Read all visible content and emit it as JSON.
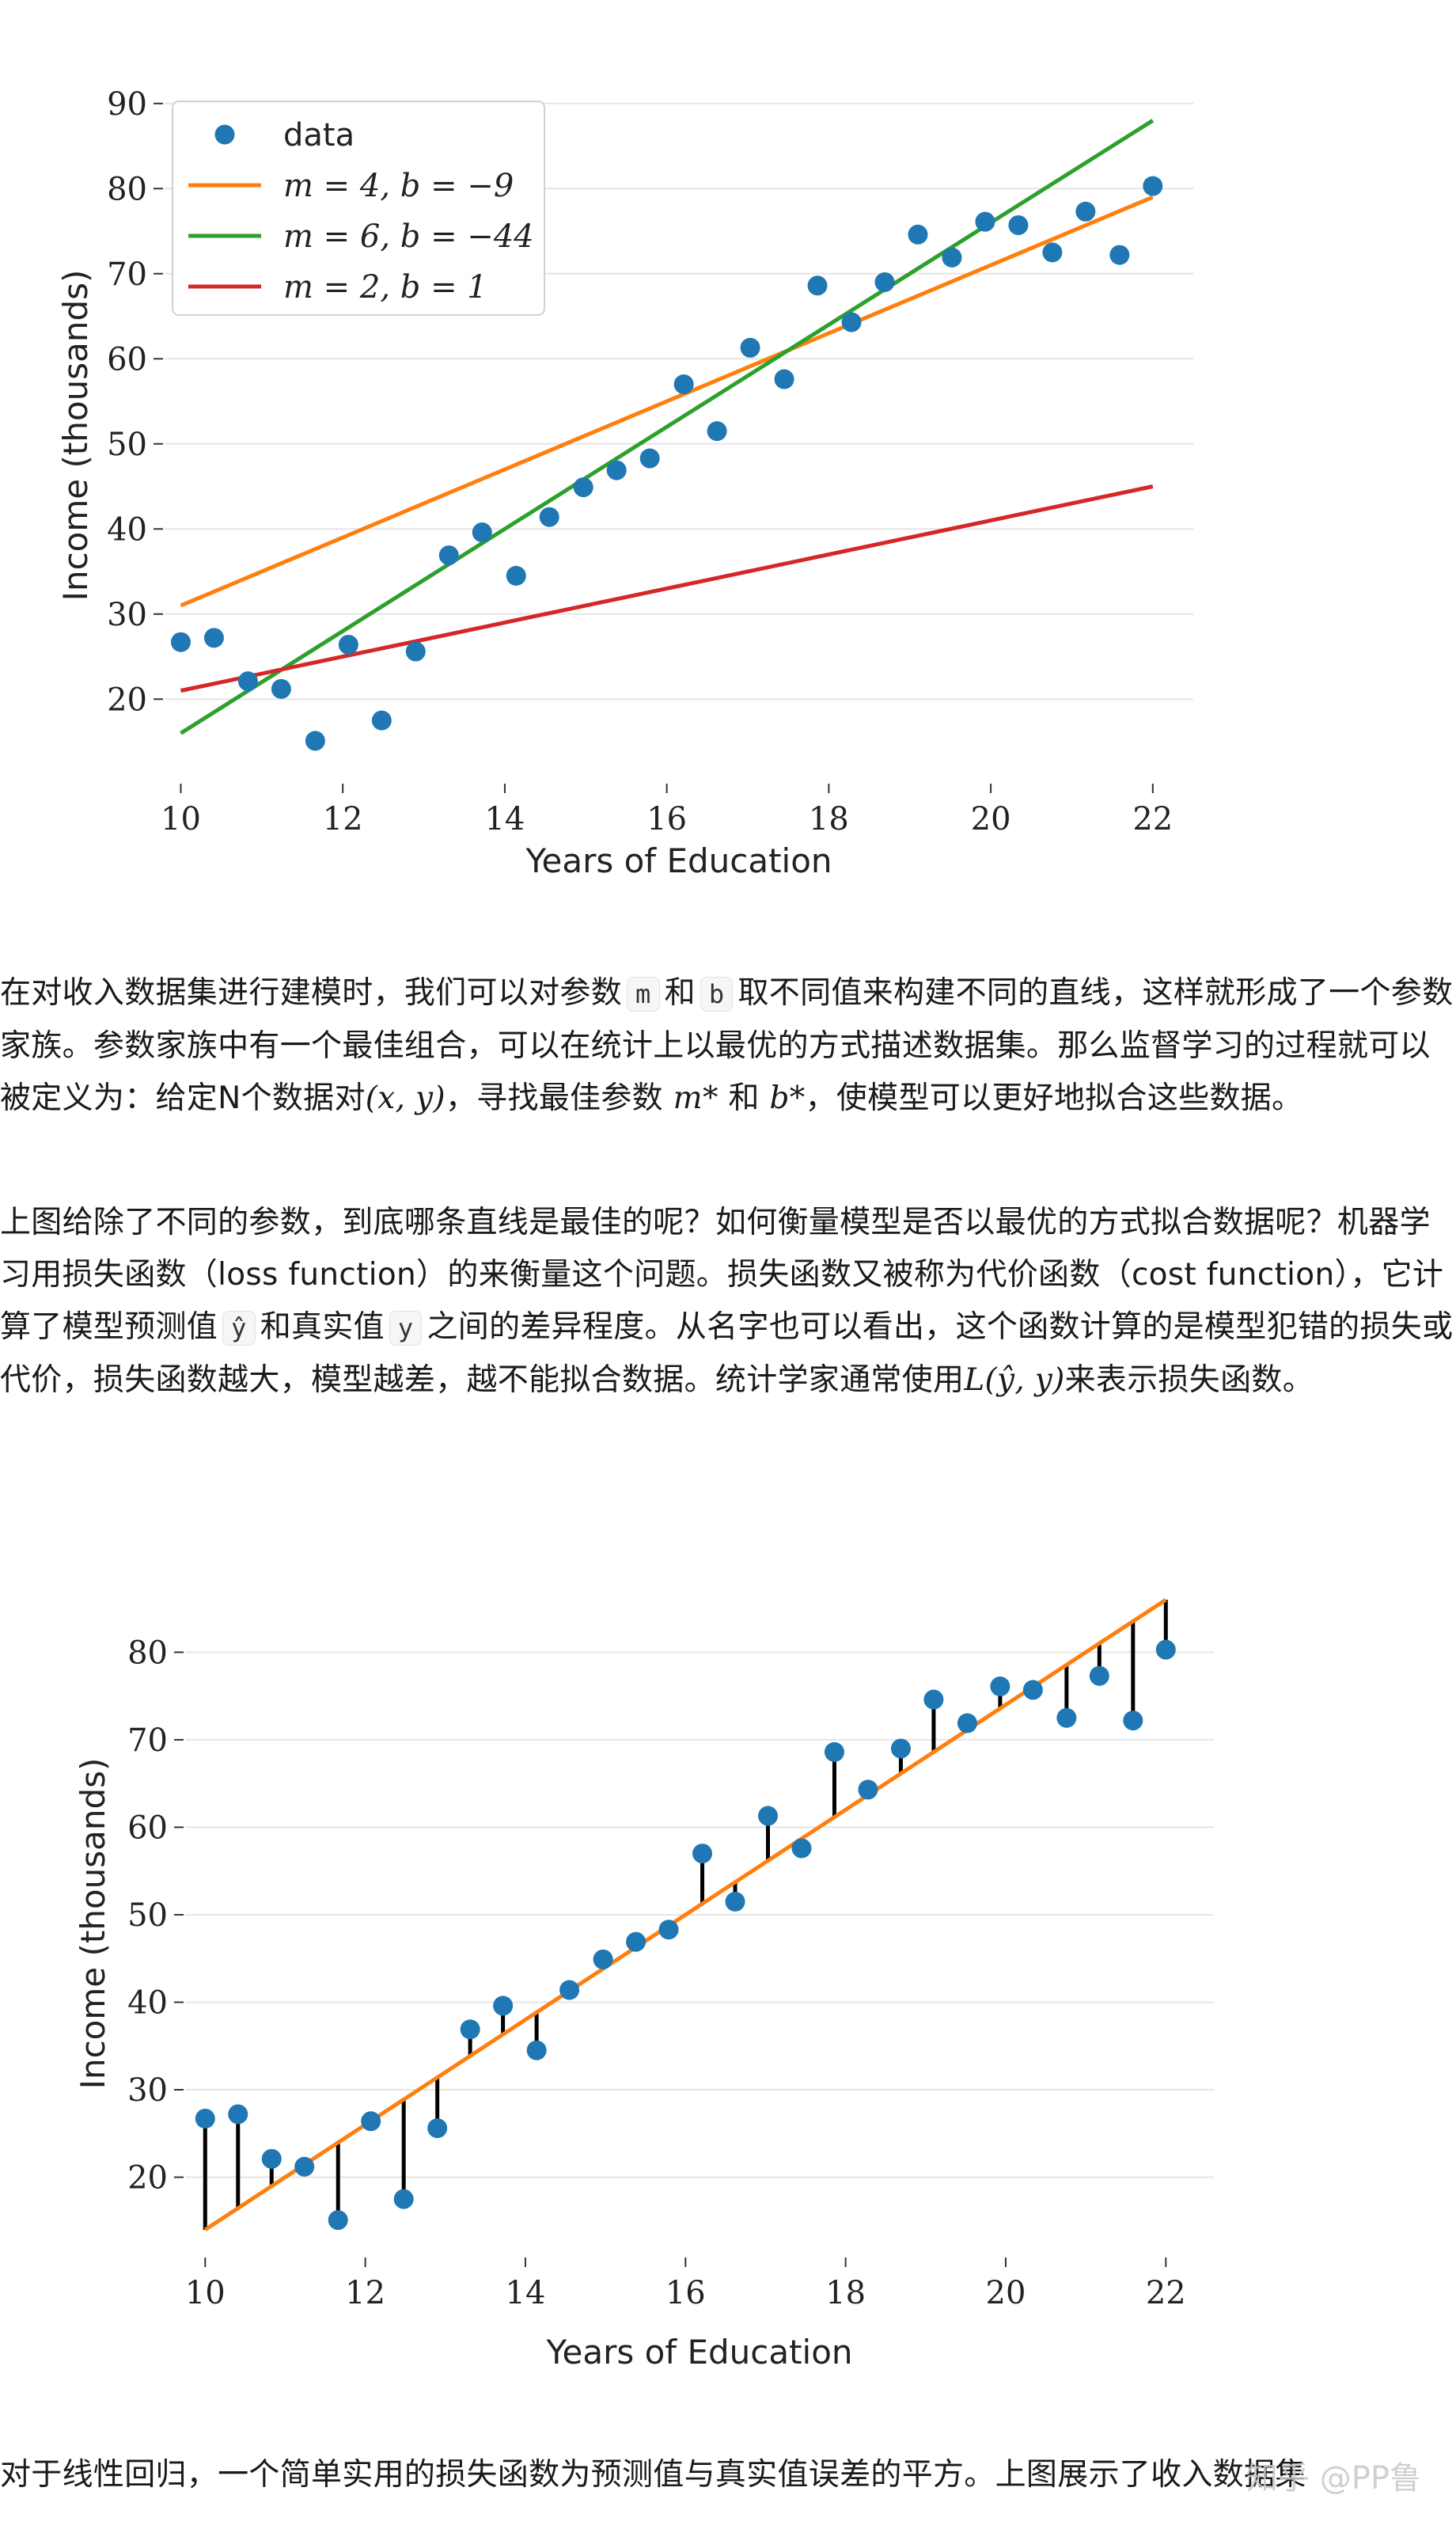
{
  "chart_data": [
    {
      "type": "scatter",
      "title": "",
      "xlabel": "Years of Education",
      "ylabel": "Income (thousands)",
      "xlim": [
        9.8,
        22.5
      ],
      "ylim": [
        11,
        91
      ],
      "xticks": [
        10,
        12,
        14,
        16,
        18,
        20,
        22
      ],
      "yticks": [
        20,
        30,
        40,
        50,
        60,
        70,
        80,
        90
      ],
      "grid": "horizontal",
      "legend_position": "top-left",
      "series": [
        {
          "name": "data",
          "kind": "points",
          "color": "#1f77b4",
          "x": [
            10,
            10.41,
            10.83,
            11.24,
            11.66,
            12.07,
            12.48,
            12.9,
            13.31,
            13.72,
            14.14,
            14.55,
            14.97,
            15.38,
            15.79,
            16.21,
            16.62,
            17.03,
            17.45,
            17.86,
            18.28,
            18.69,
            19.1,
            19.52,
            19.93,
            20.34,
            20.76,
            21.17,
            21.59,
            22
          ],
          "y": [
            26.7,
            27.2,
            22.1,
            21.2,
            15.1,
            26.4,
            17.5,
            25.6,
            36.9,
            39.6,
            34.5,
            41.4,
            44.9,
            46.9,
            48.3,
            57.0,
            51.5,
            61.3,
            57.6,
            68.6,
            64.3,
            69.0,
            74.6,
            71.9,
            76.1,
            75.7,
            72.5,
            77.3,
            72.2,
            80.3
          ]
        },
        {
          "name": "m = 4, b = −9",
          "kind": "line",
          "color": "#ff7f0e",
          "m": 4,
          "b": -9
        },
        {
          "name": "m = 6, b = −44",
          "kind": "line",
          "color": "#2ca02c",
          "m": 6,
          "b": -44
        },
        {
          "name": "m = 2, b = 1",
          "kind": "line",
          "color": "#d62728",
          "m": 2,
          "b": 1
        }
      ]
    },
    {
      "type": "scatter",
      "title": "",
      "xlabel": "Years of Education",
      "ylabel": "Income (thousands)",
      "xlim": [
        9.75,
        22.6
      ],
      "ylim": [
        11,
        87
      ],
      "xticks": [
        10,
        12,
        14,
        16,
        18,
        20,
        22
      ],
      "yticks": [
        20,
        30,
        40,
        50,
        60,
        70,
        80
      ],
      "grid": "horizontal",
      "residuals": true,
      "series": [
        {
          "kind": "points",
          "color": "#1f77b4",
          "x": [
            10,
            10.41,
            10.83,
            11.24,
            11.66,
            12.07,
            12.48,
            12.9,
            13.31,
            13.72,
            14.14,
            14.55,
            14.97,
            15.38,
            15.79,
            16.21,
            16.62,
            17.03,
            17.45,
            17.86,
            18.28,
            18.69,
            19.1,
            19.52,
            19.93,
            20.34,
            20.76,
            21.17,
            21.59,
            22
          ],
          "y": [
            26.7,
            27.2,
            22.1,
            21.2,
            15.1,
            26.4,
            17.5,
            25.6,
            36.9,
            39.6,
            34.5,
            41.4,
            44.9,
            46.9,
            48.3,
            57.0,
            51.5,
            61.3,
            57.6,
            68.6,
            64.3,
            69.0,
            74.6,
            71.9,
            76.1,
            75.7,
            72.5,
            77.3,
            72.2,
            80.3
          ]
        },
        {
          "kind": "line",
          "color": "#ff7f0e",
          "m": 6,
          "b": -46
        }
      ]
    }
  ],
  "article": {
    "p1": {
      "t1": "在对收入数据集进行建模时，我们可以对参数",
      "c1": "m",
      "t2": "和",
      "c2": "b",
      "t3": "取不同值来构建不同的直线，这样就形成了一个参数家族。参数家族中有一个最佳组合，可以在统计上以最优的方式描述数据集。那么监督学习的过程就可以被定义为：给定N个数据对",
      "m1": "(x, y)",
      "t4": "，寻找最佳参数",
      "m2": "m*",
      "t5": "和",
      "m3": "b*",
      "t6": "，使模型可以更好地拟合这些数据。"
    },
    "p2": {
      "t1": "上图给除了不同的参数，到底哪条直线是最佳的呢？如何衡量模型是否以最优的方式拟合数据呢？机器学习用损失函数（loss function）的来衡量这个问题。损失函数又被称为代价函数（cost function），它计算了模型预测值",
      "c1": "ŷ",
      "t2": "和真实值",
      "c2": "y",
      "t3": "之间的差异程度。从名字也可以看出，这个函数计算的是模型犯错的损失或代价，损失函数越大，模型越差，越不能拟合数据。统计学家通常使用",
      "m1": "L(ŷ, y)",
      "t4": "来表示损失函数。"
    },
    "p3": "对于线性回归，一个简单实用的损失函数为预测值与真实值误差的平方。上图展示了收入数据集"
  },
  "watermark": "知乎 @PP鲁"
}
